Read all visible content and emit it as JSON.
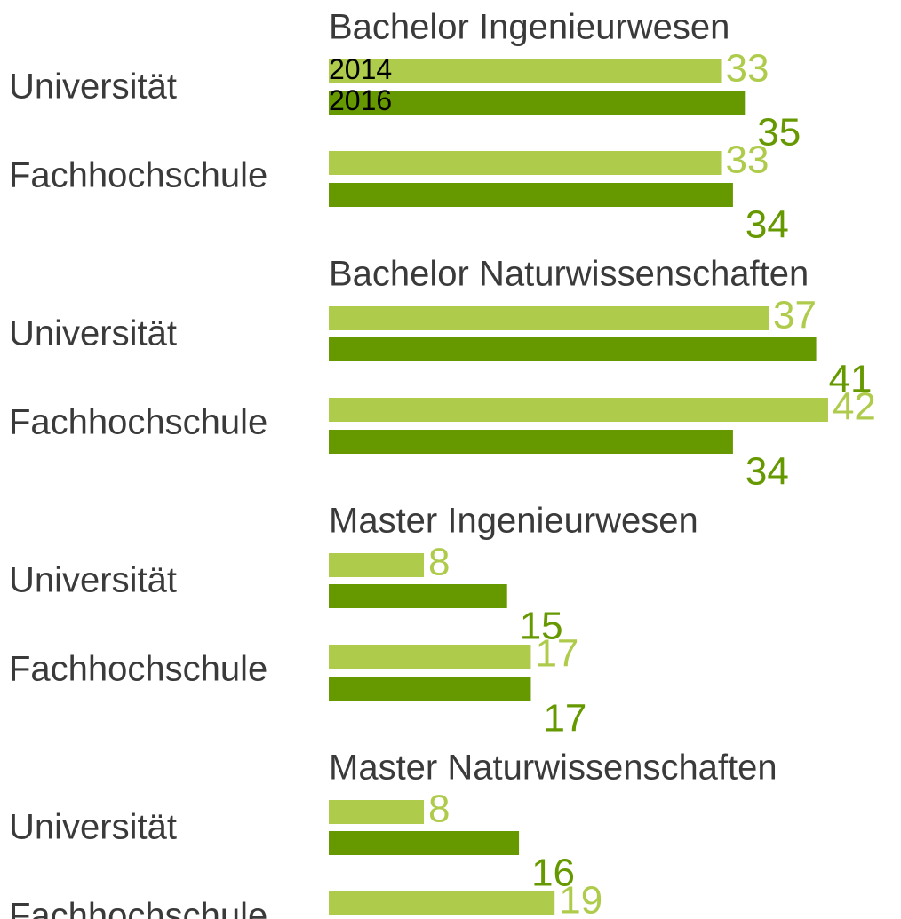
{
  "chart_data": {
    "type": "bar",
    "orientation": "horizontal",
    "series": [
      {
        "name": "2014",
        "color": "#afcb4c"
      },
      {
        "name": "2016",
        "color": "#669900"
      }
    ],
    "panels": [
      {
        "title": "Bachelor Ingenieurwesen",
        "categories": [
          "Universität",
          "Fachhochschule"
        ],
        "series": [
          {
            "values": [
              33,
              33
            ]
          },
          {
            "values": [
              35,
              34
            ]
          }
        ]
      },
      {
        "title": "Bachelor Naturwissenschaften",
        "categories": [
          "Universität",
          "Fachhochschule"
        ],
        "series": [
          {
            "values": [
              37,
              42
            ]
          },
          {
            "values": [
              41,
              34
            ]
          }
        ]
      },
      {
        "title": "Master Ingenieurwesen",
        "categories": [
          "Universität",
          "Fachhochschule"
        ],
        "series": [
          {
            "values": [
              8,
              17
            ]
          },
          {
            "values": [
              15,
              17
            ]
          }
        ]
      },
      {
        "title": "Master Naturwissenschaften",
        "categories": [
          "Universität",
          "Fachhochschule"
        ],
        "series": [
          {
            "values": [
              8,
              19
            ]
          },
          {
            "values": [
              16,
              null
            ]
          }
        ]
      }
    ]
  }
}
